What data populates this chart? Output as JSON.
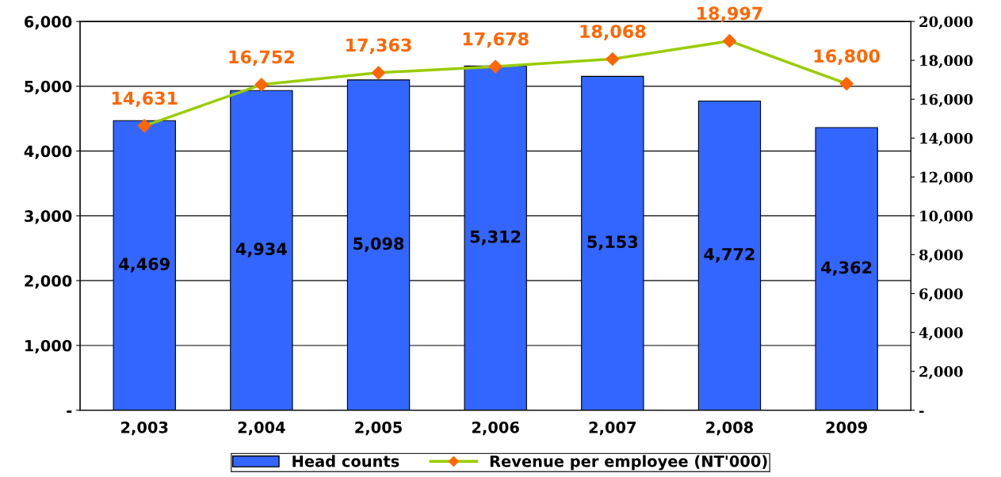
{
  "chart_data": {
    "type": "bar",
    "categories": [
      "2,003",
      "2,004",
      "2,005",
      "2,006",
      "2,007",
      "2,008",
      "2009"
    ],
    "series": [
      {
        "name": "Head counts",
        "color": "#3366ff",
        "values": [
          4469,
          4934,
          5098,
          5312,
          5153,
          4772,
          4362
        ],
        "value_labels": [
          "4,469",
          "4,934",
          "5,098",
          "5,312",
          "5,153",
          "4,772",
          "4,362"
        ]
      },
      {
        "name": "Revenue per employee (NT'000)",
        "type": "line",
        "axis": "y2",
        "color": "#99cc00",
        "colors": [
          "#ff6600",
          "#ff6600",
          "#ff6600",
          "#ff6600",
          "#ff6600",
          "#ff6600",
          "#ff6600"
        ],
        "values": [
          14631,
          16752,
          17363,
          17678,
          18068,
          18997,
          16800
        ],
        "value_labels": [
          "14,631",
          "16,752",
          "17,363",
          "17,678",
          "18,068",
          "18,997",
          "16,800"
        ]
      }
    ],
    "ylim": [
      0,
      6000
    ],
    "yticks": [
      {
        "value": 0,
        "label": "-"
      },
      {
        "value": 1000,
        "label": "1,000"
      },
      {
        "value": 2000,
        "label": "2,000"
      },
      {
        "value": 3000,
        "label": "3,000"
      },
      {
        "value": 4000,
        "label": "4,000"
      },
      {
        "value": 5000,
        "label": "5,000"
      },
      {
        "value": 6000,
        "label": "6,000"
      }
    ],
    "y2lim": [
      0,
      20000
    ],
    "y2ticks": [
      {
        "value": 0,
        "label": "-"
      },
      {
        "value": 2000,
        "label": "2,000"
      },
      {
        "value": 4000,
        "label": "4,000"
      },
      {
        "value": 6000,
        "label": "6,000"
      },
      {
        "value": 8000,
        "label": "8,000"
      },
      {
        "value": 10000,
        "label": "10,000"
      },
      {
        "value": 12000,
        "label": "12,000"
      },
      {
        "value": 14000,
        "label": "14,000"
      },
      {
        "value": 16000,
        "label": "16,000"
      },
      {
        "value": 18000,
        "label": "18,000"
      },
      {
        "value": 20000,
        "label": "20,000"
      }
    ],
    "grid": "y",
    "legend": "bottom",
    "marker": "diamond"
  }
}
